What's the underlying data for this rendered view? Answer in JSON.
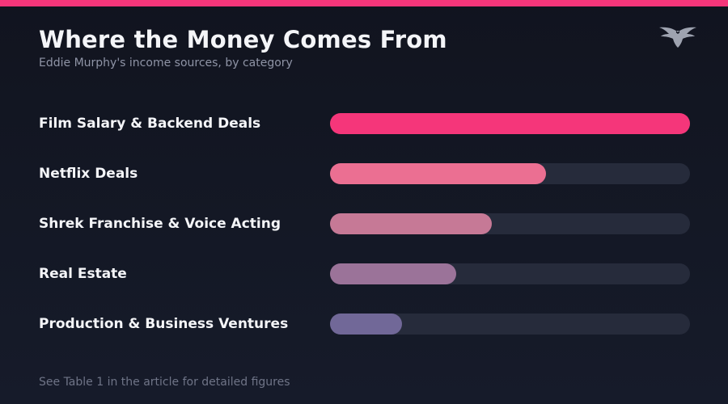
{
  "header": {
    "title": "Where the Money Comes From",
    "subtitle": "Eddie Murphy's income sources, by category"
  },
  "logo": {
    "icon": "eagle-icon",
    "color": "#9ea3b0"
  },
  "colors": {
    "accent": "#f5367a",
    "track": "#262b3b"
  },
  "chart_data": {
    "type": "bar",
    "orientation": "horizontal",
    "categories": [
      "Film Salary & Backend Deals",
      "Netflix Deals",
      "Shrek Franchise & Voice Acting",
      "Real Estate",
      "Production & Business Ventures"
    ],
    "values": [
      1.0,
      0.6,
      0.45,
      0.35,
      0.2
    ],
    "colors": [
      "#f5367a",
      "#eb6f92",
      "#c67996",
      "#9b7399",
      "#716898"
    ],
    "xlim": [
      0,
      1
    ],
    "grid": false,
    "legend": "none"
  },
  "footnote": "See Table 1 in the article for detailed figures"
}
